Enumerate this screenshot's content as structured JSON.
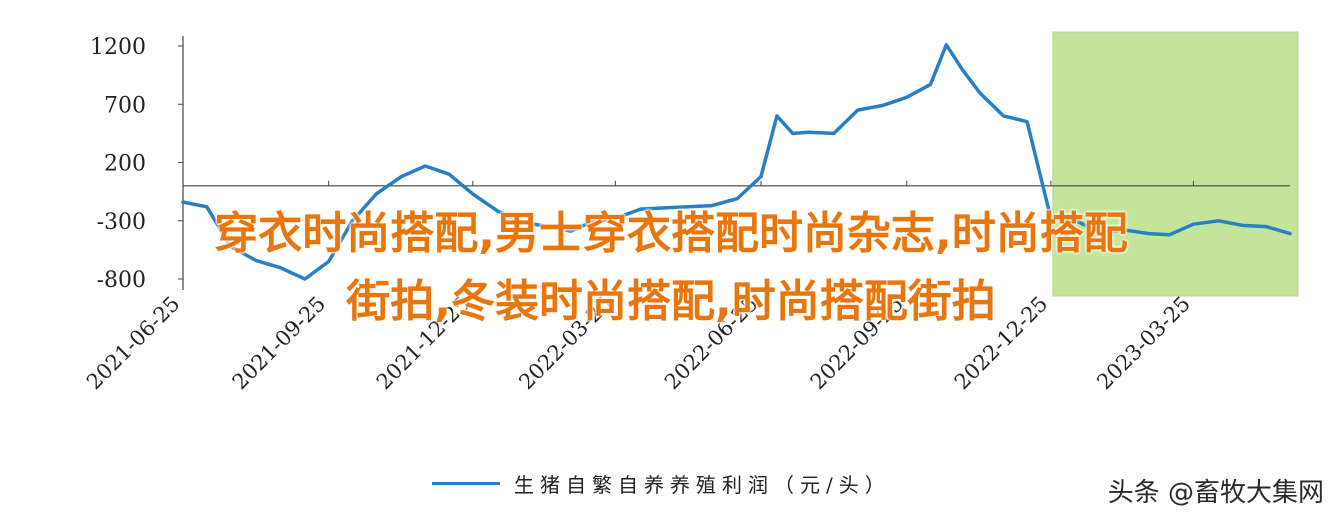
{
  "chart_data": {
    "type": "line",
    "xlabel": "",
    "ylabel": "",
    "ylim": [
      -800,
      1200
    ],
    "y_ticks": [
      "1200",
      "700",
      "200",
      "-300",
      "-800"
    ],
    "x_tick_labels": [
      "2021-06-25",
      "2021-09-25",
      "2021-12-25",
      "2022-03-25",
      "2022-06-25",
      "2022-09-25",
      "2022-12-25",
      "2023-03-25"
    ],
    "highlight_region": {
      "x_start": "2022-12-25",
      "x_end": "2023-05-25",
      "color": "#c3e59b"
    },
    "series": [
      {
        "name": "生猪自繁自养养殖利润（元/头）",
        "color": "#2a7fc4",
        "x": [
          "2021-06-25",
          "2021-07-10",
          "2021-07-25",
          "2021-08-10",
          "2021-08-25",
          "2021-09-10",
          "2021-09-25",
          "2021-10-10",
          "2021-10-25",
          "2021-11-10",
          "2021-11-25",
          "2021-12-10",
          "2021-12-25",
          "2022-01-10",
          "2022-01-25",
          "2022-02-10",
          "2022-02-25",
          "2022-03-10",
          "2022-03-25",
          "2022-04-10",
          "2022-04-25",
          "2022-05-10",
          "2022-05-25",
          "2022-06-10",
          "2022-06-25",
          "2022-07-05",
          "2022-07-15",
          "2022-07-25",
          "2022-08-10",
          "2022-08-25",
          "2022-09-10",
          "2022-09-25",
          "2022-10-10",
          "2022-10-20",
          "2022-10-30",
          "2022-11-10",
          "2022-11-25",
          "2022-12-10",
          "2022-12-25",
          "2023-01-10",
          "2023-01-25",
          "2023-02-10",
          "2023-02-25",
          "2023-03-10",
          "2023-03-25",
          "2023-04-10",
          "2023-04-25",
          "2023-05-10",
          "2023-05-25"
        ],
        "values": [
          -140,
          -180,
          -520,
          -640,
          -700,
          -800,
          -650,
          -300,
          -70,
          80,
          170,
          100,
          -70,
          -220,
          -310,
          -350,
          -390,
          -310,
          -280,
          -200,
          -190,
          -180,
          -170,
          -110,
          80,
          600,
          450,
          460,
          450,
          650,
          690,
          760,
          870,
          1210,
          1000,
          800,
          600,
          550,
          -280,
          -300,
          -400,
          -380,
          -410,
          -420,
          -330,
          -300,
          -340,
          -350,
          -410
        ]
      }
    ]
  },
  "legend": {
    "label": "生猪自繁自养养殖利润（元/头）"
  },
  "overlay": {
    "line1": "穿衣时尚搭配,男士穿衣搭配时尚杂志,时尚搭配",
    "line2": "街拍,冬装时尚搭配,时尚搭配街拍"
  },
  "watermark": "头条 @畜牧大集网"
}
